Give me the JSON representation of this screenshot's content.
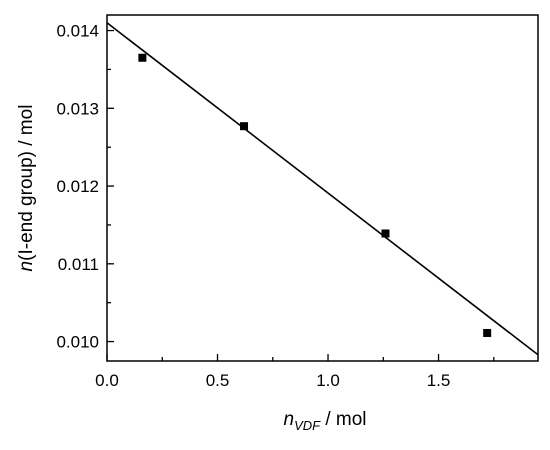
{
  "chart_data": {
    "type": "scatter",
    "title": "",
    "xlabel": {
      "var": "n",
      "sub": "VDF",
      "unit": " / mol"
    },
    "ylabel": {
      "var": "n",
      "rest": "(I-end group) / mol"
    },
    "xlim": [
      0.0,
      1.95
    ],
    "ylim": [
      0.00975,
      0.0142
    ],
    "x_ticks": [
      0.0,
      0.5,
      1.0,
      1.5
    ],
    "x_tick_labels": [
      "0.0",
      "0.5",
      "1.0",
      "1.5"
    ],
    "y_ticks": [
      0.01,
      0.011,
      0.012,
      0.013,
      0.014
    ],
    "y_tick_labels": [
      "0.010",
      "0.011",
      "0.012",
      "0.013",
      "0.014"
    ],
    "grid": false,
    "legend": "none",
    "series": [
      {
        "marker": "square",
        "x": [
          0.16,
          0.62,
          1.26,
          1.72
        ],
        "y": [
          0.01365,
          0.01277,
          0.01139,
          0.01011
        ]
      }
    ],
    "fit_line": {
      "x": [
        0.0,
        1.95
      ],
      "y": [
        0.0141,
        0.00983
      ]
    },
    "colors": {
      "axes": "#000000",
      "markers": "#000000",
      "line": "#000000"
    }
  }
}
